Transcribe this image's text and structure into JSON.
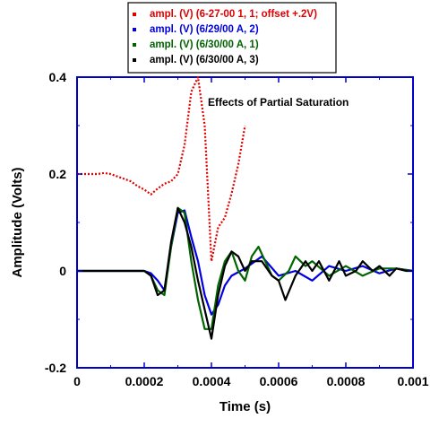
{
  "chart_data": {
    "type": "line",
    "title": "",
    "annotation": "Effects of Partial Saturation",
    "xlabel": "Time (s)",
    "ylabel": "Amplitude (Volts)",
    "xlim": [
      0,
      0.001
    ],
    "ylim": [
      -0.2,
      0.4
    ],
    "x_ticks": [
      0,
      0.0002,
      0.0004,
      0.0006,
      0.0008,
      0.001
    ],
    "x_tick_labels": [
      "0",
      "0.0002",
      "0.0004",
      "0.0006",
      "0.0008",
      "0.001"
    ],
    "y_ticks": [
      -0.2,
      0,
      0.2,
      0.4
    ],
    "y_tick_labels": [
      "-0.2",
      "0",
      "0.2",
      "0.4"
    ],
    "grid": false,
    "legend_position": "top-center-outside",
    "series": [
      {
        "name": "ampl. (V) (6-27-00 1, 1; offset +.2V)",
        "color": "#e00000",
        "marker": "dot",
        "x": [
          0,
          2e-05,
          4e-05,
          6e-05,
          8e-05,
          0.0001,
          0.00012,
          0.00014,
          0.00016,
          0.00018,
          0.0002,
          0.00022,
          0.00024,
          0.00026,
          0.00028,
          0.0003,
          0.00032,
          0.00034,
          0.00036,
          0.00038,
          0.0004,
          0.00042,
          0.00044,
          0.00046,
          0.00048,
          0.0005
        ],
        "y": [
          0.2,
          0.2,
          0.2,
          0.2,
          0.202,
          0.2,
          0.195,
          0.19,
          0.185,
          0.175,
          0.168,
          0.158,
          0.17,
          0.18,
          0.185,
          0.2,
          0.26,
          0.37,
          0.4,
          0.3,
          0.02,
          0.09,
          0.11,
          0.16,
          0.22,
          0.3
        ]
      },
      {
        "name": "ampl. (V) (6/29/00 A, 2)",
        "color": "#0000e0",
        "x": [
          0,
          5e-05,
          0.0001,
          0.00015,
          0.0002,
          0.00022,
          0.00024,
          0.00026,
          0.00028,
          0.0003,
          0.00032,
          0.00034,
          0.00036,
          0.00038,
          0.0004,
          0.00042,
          0.00044,
          0.00046,
          0.0005,
          0.00055,
          0.0006,
          0.00065,
          0.0007,
          0.00075,
          0.0008,
          0.00085,
          0.0009,
          0.00095,
          0.001
        ],
        "y": [
          0,
          0,
          0,
          0,
          0,
          -0.005,
          -0.02,
          -0.04,
          0.05,
          0.12,
          0.125,
          0.07,
          0.02,
          -0.05,
          -0.09,
          -0.07,
          -0.03,
          -0.01,
          0.005,
          0.03,
          -0.01,
          0.0,
          -0.02,
          0.01,
          0.0,
          0.01,
          -0.005,
          0.005,
          0
        ]
      },
      {
        "name": "ampl. (V) (6/30/00 A, 1)",
        "color": "#006400",
        "x": [
          0,
          5e-05,
          0.0001,
          0.00015,
          0.0002,
          0.00022,
          0.00024,
          0.00026,
          0.00028,
          0.0003,
          0.00032,
          0.00034,
          0.00036,
          0.00038,
          0.0004,
          0.00042,
          0.00044,
          0.00046,
          0.00048,
          0.0005,
          0.00052,
          0.00054,
          0.00056,
          0.00058,
          0.0006,
          0.00063,
          0.00065,
          0.00068,
          0.0007,
          0.00075,
          0.0008,
          0.00085,
          0.0009,
          0.00095,
          0.001
        ],
        "y": [
          0,
          0,
          0,
          0,
          0,
          -0.01,
          -0.04,
          -0.05,
          0.05,
          0.13,
          0.12,
          0.02,
          -0.06,
          -0.12,
          -0.12,
          -0.03,
          0.02,
          0.04,
          0.0,
          -0.02,
          0.03,
          0.05,
          0.02,
          -0.01,
          -0.02,
          0.0,
          0.03,
          0.01,
          0.02,
          -0.01,
          0.01,
          -0.01,
          0.005,
          0.005,
          0
        ]
      },
      {
        "name": "ampl. (V) (6/30/00 A, 3)",
        "color": "#000000",
        "x": [
          0,
          5e-05,
          0.0001,
          0.00015,
          0.0002,
          0.00022,
          0.00024,
          0.00026,
          0.00028,
          0.0003,
          0.00032,
          0.00034,
          0.00036,
          0.00038,
          0.0004,
          0.00042,
          0.00044,
          0.00046,
          0.00048,
          0.0005,
          0.00052,
          0.00055,
          0.00058,
          0.0006,
          0.00062,
          0.00065,
          0.00068,
          0.0007,
          0.00072,
          0.00075,
          0.00078,
          0.0008,
          0.00083,
          0.00085,
          0.00088,
          0.0009,
          0.00093,
          0.00095,
          0.00098,
          0.001
        ],
        "y": [
          0,
          0,
          0,
          0,
          0,
          -0.01,
          -0.05,
          -0.04,
          0.06,
          0.13,
          0.1,
          0.05,
          -0.02,
          -0.08,
          -0.14,
          -0.05,
          0.01,
          0.04,
          0.03,
          0.0,
          0.02,
          0.02,
          -0.01,
          -0.02,
          -0.06,
          -0.01,
          0.02,
          0.0,
          0.02,
          -0.02,
          0.02,
          -0.01,
          0.0,
          0.02,
          0.0,
          0.01,
          -0.01,
          0.005,
          0.0,
          0
        ]
      }
    ]
  }
}
